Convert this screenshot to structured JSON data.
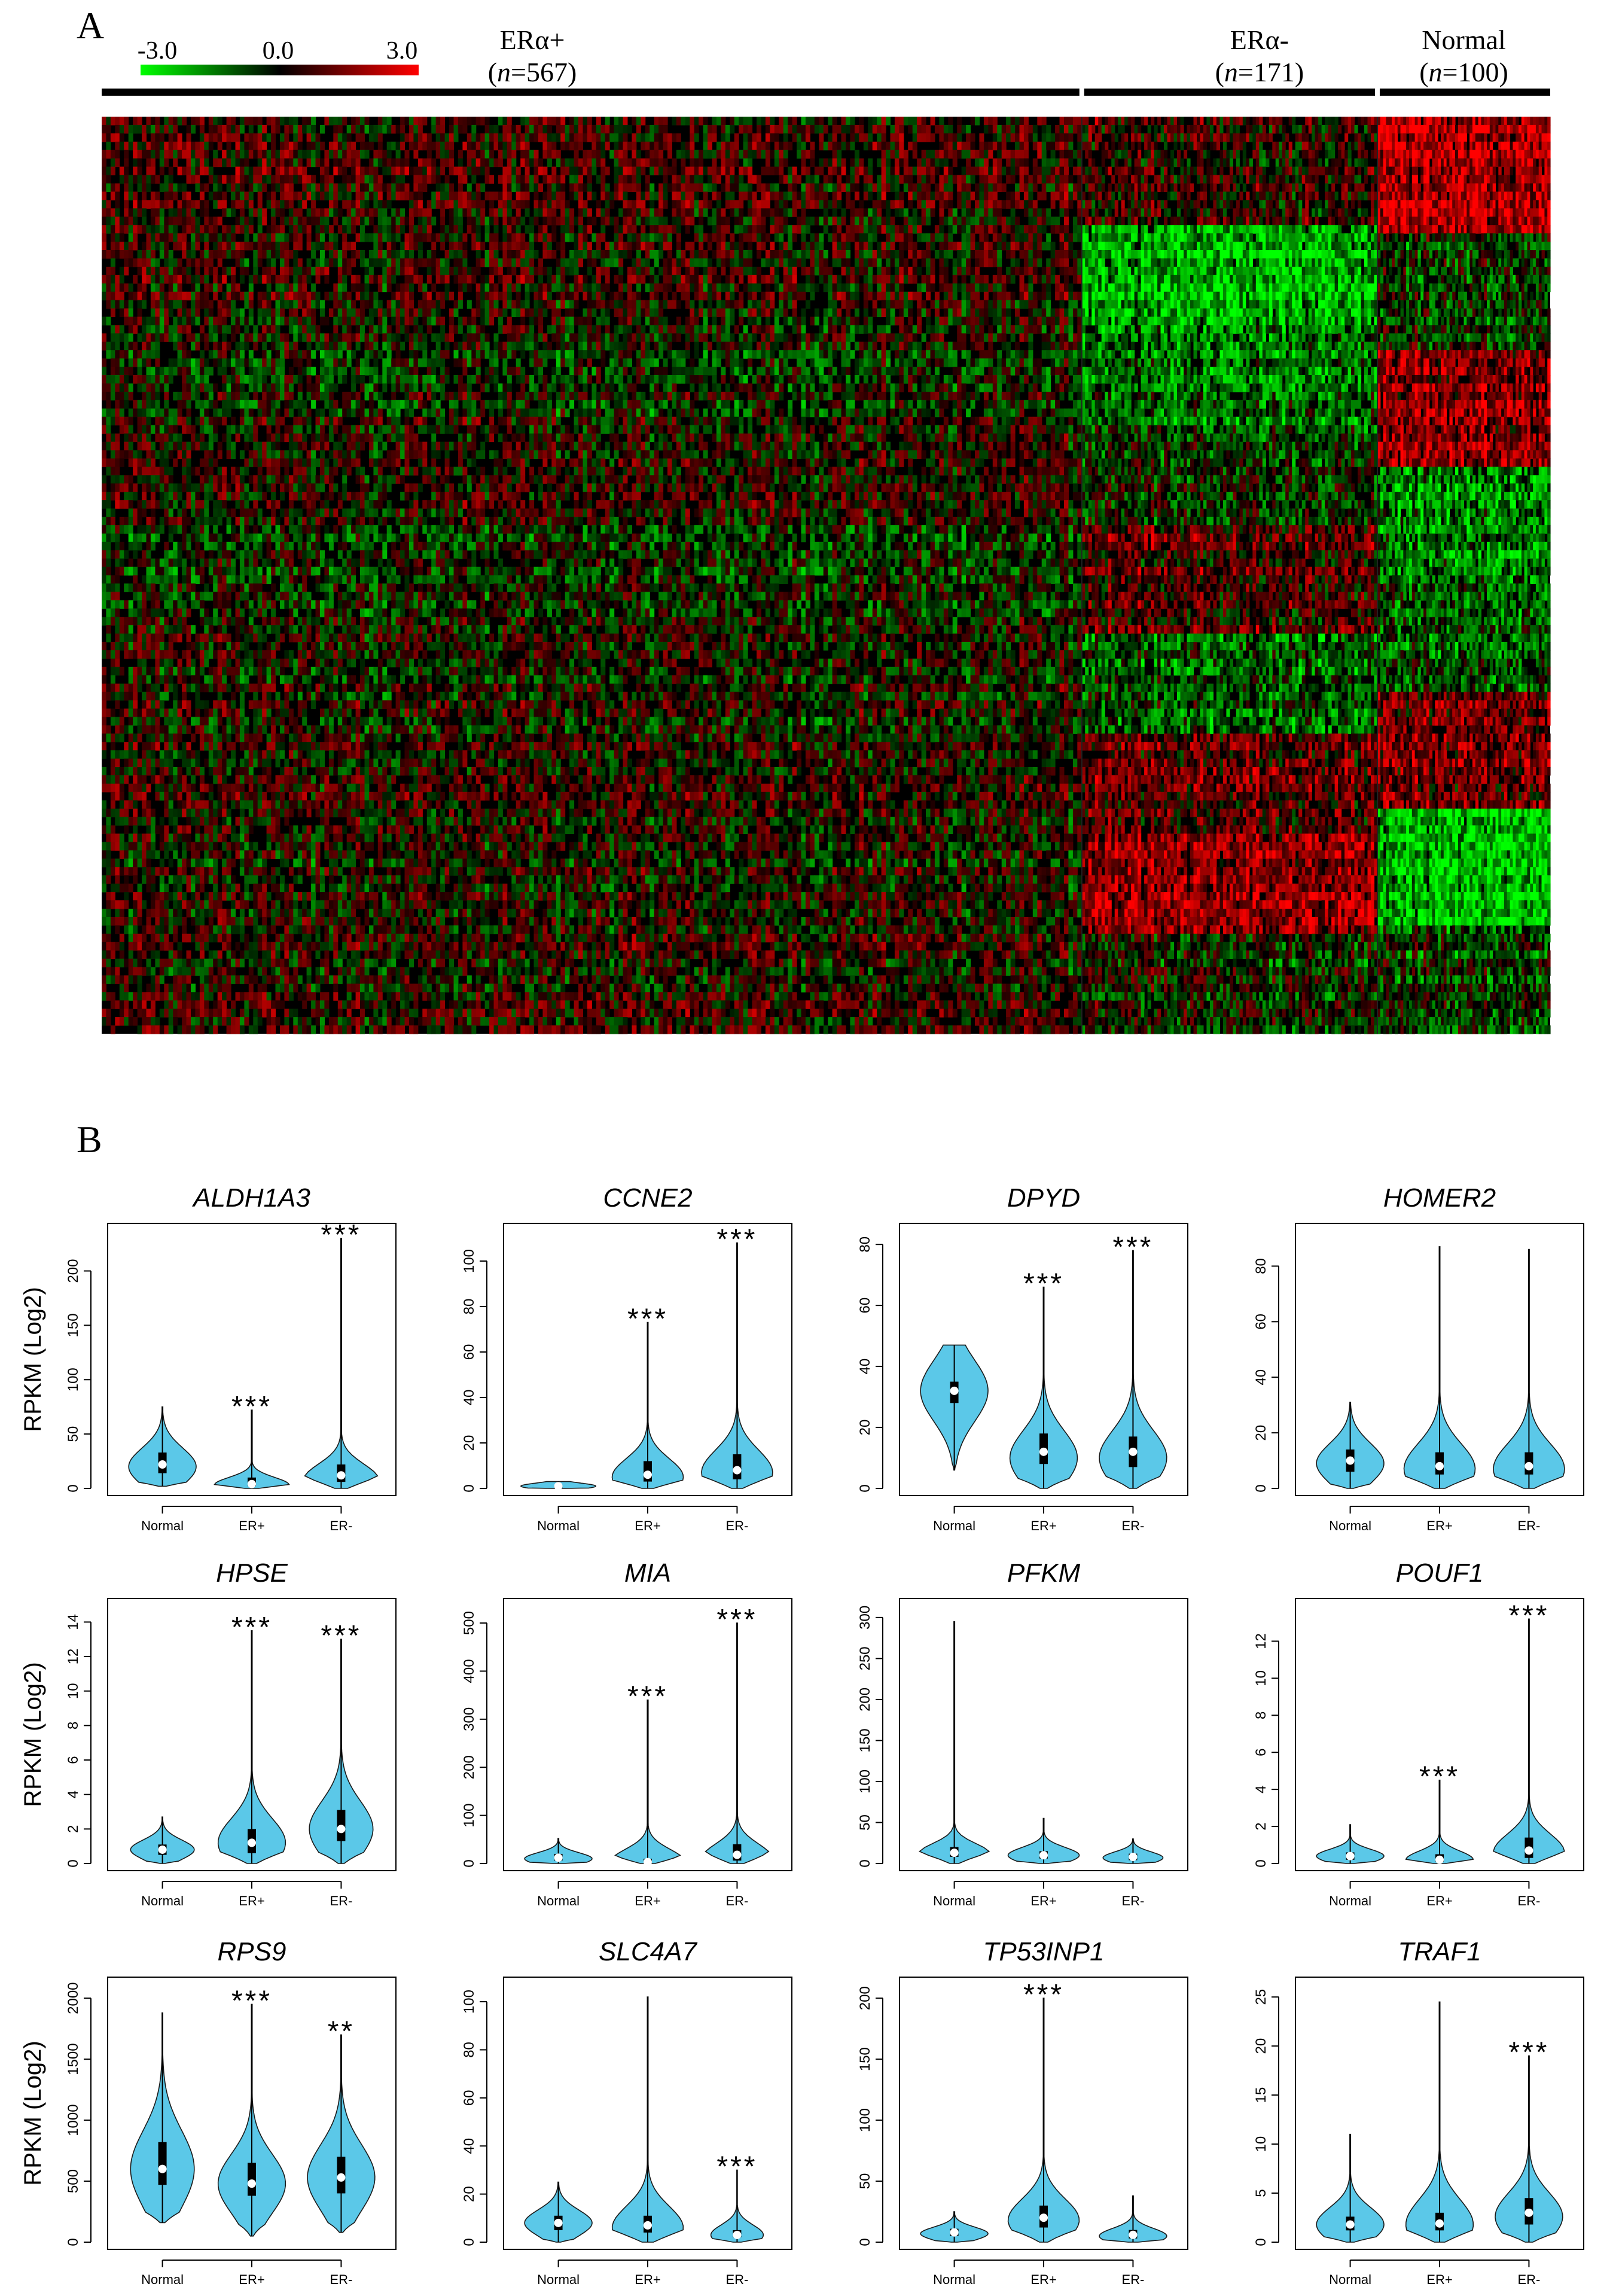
{
  "figure": {
    "panels": {
      "a": "A",
      "b": "B"
    },
    "colors": {
      "low": "#00ff00",
      "mid": "#000000",
      "high": "#ff0000",
      "violin_fill": "#5bc8e8",
      "violin_stroke": "#1a1a1a",
      "median_point": "#ffffff"
    }
  },
  "chart_data": [
    {
      "type": "heatmap",
      "panel": "A",
      "colorbar": {
        "min": -3.0,
        "mid": 0.0,
        "max": 3.0,
        "labels": [
          "-3.0",
          "0.0",
          "3.0"
        ]
      },
      "groups": [
        {
          "name": "ERα+",
          "n_label": "n",
          "n_value": "=567",
          "n": 567
        },
        {
          "name": "ERα-",
          "n_label": "n",
          "n_value": "=171",
          "n": 171
        },
        {
          "name": "Normal",
          "n_label": "n",
          "n_value": "=100",
          "n": 100
        }
      ],
      "row_blocks_normal": [
        1.6,
        -0.3,
        1.2,
        -1.0,
        -0.6,
        0.9,
        -1.6,
        -0.4
      ],
      "row_blocks_er_neg": [
        0.3,
        -1.6,
        -0.8,
        -0.2,
        0.6,
        -0.6,
        0.7,
        1.2,
        -0.1
      ],
      "row_blocks_er_pos": [
        0.4,
        0.2,
        -0.1,
        0.3,
        -0.2,
        0.0,
        0.1,
        0.0,
        0.2
      ]
    },
    {
      "type": "violin",
      "panel": "B",
      "ylabel": "RPKM (Log2)",
      "categories": [
        "Normal",
        "ER+",
        "ER-"
      ],
      "genes": [
        {
          "gene": "ALDH1A3",
          "ylim": [
            0,
            230
          ],
          "yticks": [
            0,
            50,
            100,
            150,
            200
          ],
          "ytick_labels": [
            "0",
            "50",
            "100",
            "150",
            "200"
          ],
          "violins": [
            {
              "min": 2,
              "max": 75,
              "median": 22,
              "q1": 14,
              "q3": 33,
              "peak": 20,
              "width": 0.9,
              "tail": 0.6
            },
            {
              "min": 0,
              "max": 72,
              "median": 4,
              "q1": 2,
              "q3": 10,
              "peak": 3,
              "width": 1.0,
              "tail": 0.25
            },
            {
              "min": 0,
              "max": 230,
              "median": 12,
              "q1": 6,
              "q3": 22,
              "peak": 8,
              "width": 1.0,
              "tail": 0.15
            }
          ],
          "significance": [
            "",
            "***",
            "***"
          ]
        },
        {
          "gene": "CCNE2",
          "ylim": [
            0,
            110
          ],
          "yticks": [
            0,
            20,
            40,
            60,
            80,
            100
          ],
          "ytick_labels": [
            "0",
            "20",
            "40",
            "60",
            "80",
            "100"
          ],
          "violins": [
            {
              "min": 0,
              "max": 3,
              "median": 1,
              "q1": 0.6,
              "q3": 1.4,
              "peak": 1,
              "width": 1.0,
              "tail": 0.5
            },
            {
              "min": 0,
              "max": 73,
              "median": 6,
              "q1": 3,
              "q3": 12,
              "peak": 5,
              "width": 0.95,
              "tail": 0.25
            },
            {
              "min": 0,
              "max": 108,
              "median": 8,
              "q1": 4,
              "q3": 15,
              "peak": 7,
              "width": 0.95,
              "tail": 0.2
            }
          ],
          "significance": [
            "",
            "***",
            "***"
          ]
        },
        {
          "gene": "DPYD",
          "ylim": [
            0,
            82
          ],
          "yticks": [
            0,
            20,
            40,
            60,
            80
          ],
          "ytick_labels": [
            "0",
            "20",
            "40",
            "60",
            "80"
          ],
          "violins": [
            {
              "min": 6,
              "max": 47,
              "median": 32,
              "q1": 28,
              "q3": 35,
              "peak": 32,
              "width": 0.9,
              "tail": 0.7
            },
            {
              "min": 0,
              "max": 66,
              "median": 12,
              "q1": 8,
              "q3": 18,
              "peak": 10,
              "width": 0.9,
              "tail": 0.3
            },
            {
              "min": 0,
              "max": 78,
              "median": 12,
              "q1": 7,
              "q3": 17,
              "peak": 10,
              "width": 0.9,
              "tail": 0.25
            }
          ],
          "significance": [
            "",
            "***",
            "***"
          ]
        },
        {
          "gene": "HOMER2",
          "ylim": [
            0,
            90
          ],
          "yticks": [
            0,
            20,
            40,
            60,
            80
          ],
          "ytick_labels": [
            "0",
            "20",
            "40",
            "60",
            "80"
          ],
          "violins": [
            {
              "min": 0,
              "max": 31,
              "median": 10,
              "q1": 6,
              "q3": 14,
              "peak": 9,
              "width": 0.9,
              "tail": 0.6
            },
            {
              "min": 0,
              "max": 87,
              "median": 8,
              "q1": 5,
              "q3": 13,
              "peak": 7,
              "width": 0.95,
              "tail": 0.3
            },
            {
              "min": 0,
              "max": 86,
              "median": 8,
              "q1": 5,
              "q3": 13,
              "peak": 7,
              "width": 0.95,
              "tail": 0.3
            }
          ],
          "significance": [
            "",
            "",
            ""
          ]
        },
        {
          "gene": "HPSE",
          "ylim": [
            0,
            14.5
          ],
          "yticks": [
            0,
            2,
            4,
            6,
            8,
            10,
            12,
            14
          ],
          "ytick_labels": [
            "0",
            "2",
            "4",
            "6",
            "8",
            "10",
            "12",
            "14"
          ],
          "violins": [
            {
              "min": 0,
              "max": 2.7,
              "median": 0.8,
              "q1": 0.5,
              "q3": 1.1,
              "peak": 0.8,
              "width": 0.85,
              "tail": 0.6
            },
            {
              "min": 0,
              "max": 13.5,
              "median": 1.2,
              "q1": 0.6,
              "q3": 2.0,
              "peak": 1.2,
              "width": 0.9,
              "tail": 0.3
            },
            {
              "min": 0,
              "max": 13.0,
              "median": 2.0,
              "q1": 1.3,
              "q3": 3.1,
              "peak": 2.0,
              "width": 0.85,
              "tail": 0.35
            }
          ],
          "significance": [
            "",
            "***",
            "***"
          ]
        },
        {
          "gene": "MIA",
          "ylim": [
            0,
            520
          ],
          "yticks": [
            0,
            100,
            200,
            300,
            400,
            500
          ],
          "ytick_labels": [
            "0",
            "100",
            "200",
            "300",
            "400",
            "500"
          ],
          "violins": [
            {
              "min": 0,
              "max": 52,
              "median": 12,
              "q1": 6,
              "q3": 20,
              "peak": 10,
              "width": 0.9,
              "tail": 0.6
            },
            {
              "min": 0,
              "max": 340,
              "median": 3,
              "q1": 1,
              "q3": 10,
              "peak": 3,
              "width": 1.0,
              "tail": 0.22
            },
            {
              "min": 0,
              "max": 500,
              "median": 18,
              "q1": 6,
              "q3": 40,
              "peak": 10,
              "width": 0.95,
              "tail": 0.15
            }
          ],
          "significance": [
            "",
            "***",
            "***"
          ]
        },
        {
          "gene": "PFKM",
          "ylim": [
            0,
            305
          ],
          "yticks": [
            0,
            50,
            100,
            150,
            200,
            250,
            300
          ],
          "ytick_labels": [
            "0",
            "50",
            "100",
            "150",
            "200",
            "250",
            "300"
          ],
          "violins": [
            {
              "min": 0,
              "max": 295,
              "median": 13,
              "q1": 8,
              "q3": 20,
              "peak": 12,
              "width": 0.95,
              "tail": 0.12
            },
            {
              "min": 0,
              "max": 55,
              "median": 10,
              "q1": 6,
              "q3": 15,
              "peak": 10,
              "width": 0.95,
              "tail": 0.5
            },
            {
              "min": 0,
              "max": 30,
              "median": 8,
              "q1": 4,
              "q3": 12,
              "peak": 7,
              "width": 0.8,
              "tail": 0.6
            }
          ],
          "significance": [
            "",
            "",
            ""
          ]
        },
        {
          "gene": "POUF1",
          "ylim": [
            0,
            13.5
          ],
          "yticks": [
            0,
            2,
            4,
            6,
            8,
            10,
            12
          ],
          "ytick_labels": [
            "0",
            "2",
            "4",
            "6",
            "8",
            "10",
            "12"
          ],
          "violins": [
            {
              "min": 0,
              "max": 2.1,
              "median": 0.4,
              "q1": 0.2,
              "q3": 0.6,
              "peak": 0.4,
              "width": 0.9,
              "tail": 0.5
            },
            {
              "min": 0,
              "max": 4.5,
              "median": 0.2,
              "q1": 0.1,
              "q3": 0.5,
              "peak": 0.2,
              "width": 0.9,
              "tail": 0.3
            },
            {
              "min": 0,
              "max": 13.2,
              "median": 0.7,
              "q1": 0.3,
              "q3": 1.4,
              "peak": 0.6,
              "width": 0.95,
              "tail": 0.2
            }
          ],
          "significance": [
            "",
            "***",
            "***"
          ]
        },
        {
          "gene": "RPS9",
          "ylim": [
            0,
            2050
          ],
          "yticks": [
            0,
            500,
            1000,
            1500,
            2000
          ],
          "ytick_labels": [
            "0",
            "500",
            "1000",
            "1500",
            "2000"
          ],
          "violins": [
            {
              "min": 160,
              "max": 1880,
              "median": 600,
              "q1": 470,
              "q3": 820,
              "peak": 600,
              "width": 0.85,
              "tail": 0.35
            },
            {
              "min": 50,
              "max": 1950,
              "median": 480,
              "q1": 380,
              "q3": 650,
              "peak": 480,
              "width": 0.9,
              "tail": 0.3
            },
            {
              "min": 80,
              "max": 1700,
              "median": 530,
              "q1": 400,
              "q3": 700,
              "peak": 530,
              "width": 0.9,
              "tail": 0.3
            }
          ],
          "significance": [
            "",
            "***",
            "**"
          ]
        },
        {
          "gene": "SLC4A7",
          "ylim": [
            0,
            104
          ],
          "yticks": [
            0,
            20,
            40,
            60,
            80,
            100
          ],
          "ytick_labels": [
            "0",
            "20",
            "40",
            "60",
            "80",
            "100"
          ],
          "violins": [
            {
              "min": 0,
              "max": 25,
              "median": 8,
              "q1": 5,
              "q3": 11,
              "peak": 8,
              "width": 0.9,
              "tail": 0.6
            },
            {
              "min": 0,
              "max": 102,
              "median": 7,
              "q1": 4,
              "q3": 11,
              "peak": 6,
              "width": 0.95,
              "tail": 0.25
            },
            {
              "min": 0,
              "max": 30,
              "median": 3,
              "q1": 2,
              "q3": 5,
              "peak": 3,
              "width": 0.7,
              "tail": 0.4
            }
          ],
          "significance": [
            "",
            "",
            "***"
          ]
        },
        {
          "gene": "TP53INP1",
          "ylim": [
            0,
            205
          ],
          "yticks": [
            0,
            50,
            100,
            150,
            200
          ],
          "ytick_labels": [
            "0",
            "50",
            "100",
            "150",
            "200"
          ],
          "violins": [
            {
              "min": 0,
              "max": 25,
              "median": 8,
              "q1": 5,
              "q3": 11,
              "peak": 7,
              "width": 0.9,
              "tail": 0.6
            },
            {
              "min": 0,
              "max": 200,
              "median": 20,
              "q1": 12,
              "q3": 30,
              "peak": 18,
              "width": 0.95,
              "tail": 0.25
            },
            {
              "min": 0,
              "max": 38,
              "median": 6,
              "q1": 3,
              "q3": 10,
              "peak": 5,
              "width": 0.9,
              "tail": 0.45
            }
          ],
          "significance": [
            "",
            "***",
            ""
          ]
        },
        {
          "gene": "TRAF1",
          "ylim": [
            0,
            25.5
          ],
          "yticks": [
            0,
            5,
            10,
            15,
            20,
            25
          ],
          "ytick_labels": [
            "0",
            "5",
            "10",
            "15",
            "20",
            "25"
          ],
          "violins": [
            {
              "min": 0,
              "max": 11,
              "median": 1.8,
              "q1": 1.2,
              "q3": 2.6,
              "peak": 1.8,
              "width": 0.9,
              "tail": 0.45
            },
            {
              "min": 0,
              "max": 24.5,
              "median": 1.9,
              "q1": 1.2,
              "q3": 3.0,
              "peak": 1.8,
              "width": 0.9,
              "tail": 0.3
            },
            {
              "min": 0,
              "max": 19,
              "median": 3.0,
              "q1": 1.8,
              "q3": 4.5,
              "peak": 2.6,
              "width": 0.9,
              "tail": 0.35
            }
          ],
          "significance": [
            "",
            "",
            "***"
          ]
        }
      ]
    }
  ]
}
